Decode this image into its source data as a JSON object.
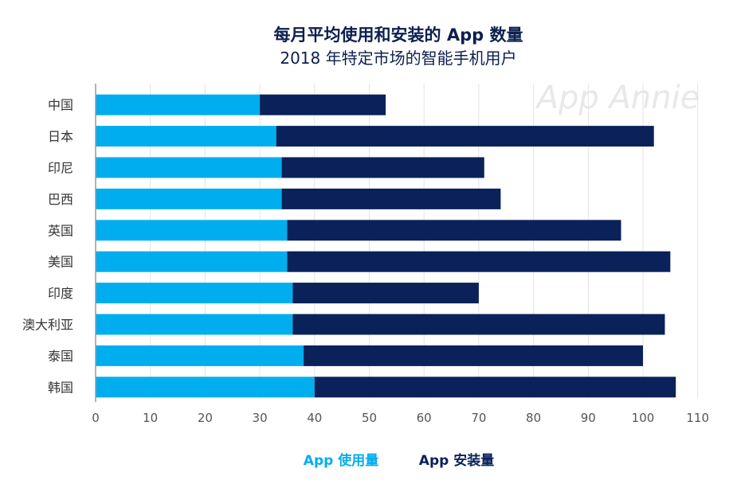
{
  "chart_data": {
    "type": "bar",
    "orientation": "horizontal",
    "stacked": true,
    "title": "每月平均使用和安装的 App 数量",
    "subtitle": "2018 年特定市场的智能手机用户",
    "watermark": "App Annie",
    "categories": [
      "中国",
      "日本",
      "印尼",
      "巴西",
      "英国",
      "美国",
      "印度",
      "澳大利亚",
      "泰国",
      "韩国"
    ],
    "series": [
      {
        "name": "App 使用量",
        "color": "#00aeef",
        "values": [
          30,
          33,
          34,
          34,
          35,
          35,
          36,
          36,
          38,
          40
        ]
      },
      {
        "name": "App 安装量",
        "color": "#0a2259",
        "values": [
          23,
          69,
          37,
          40,
          61,
          70,
          34,
          68,
          62,
          66
        ]
      }
    ],
    "xlim": [
      0,
      110
    ],
    "xticks": [
      0,
      10,
      20,
      30,
      40,
      50,
      60,
      70,
      80,
      90,
      100,
      110
    ],
    "grid": true,
    "legend": "bottom"
  }
}
